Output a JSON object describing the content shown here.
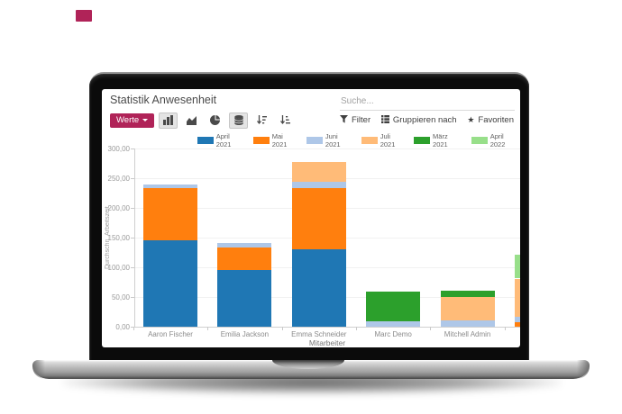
{
  "colors": {
    "accent": "#b02358"
  },
  "header": {
    "title": "Statistik Anwesenheit",
    "search_placeholder": "Suche...",
    "measures_button": "Werte",
    "filter": "Filter",
    "group_by": "Gruppieren nach",
    "favorites": "Favoriten",
    "toolbar_icons": [
      "bar-chart",
      "area-chart",
      "pie-chart",
      "stacked-database",
      "sort-descending",
      "sort-ascending"
    ]
  },
  "chart_data": {
    "type": "bar",
    "stacked": true,
    "title": "Statistik Anwesenheit",
    "xlabel": "Mitarbeiter",
    "ylabel": "Durchschn. Arbeitszeit",
    "ylim": [
      0,
      300
    ],
    "yticks": [
      "300,00",
      "250,00",
      "200,00",
      "150,00",
      "100,00",
      "50,00",
      "0,00"
    ],
    "grid": true,
    "legend_position": "top",
    "categories": [
      "Aaron Fischer",
      "Emilia Jackson",
      "Emma Schneider",
      "Marc Demo",
      "Mitchell Admin",
      ""
    ],
    "series": [
      {
        "name": "April 2021",
        "color": "#1f77b4",
        "values": [
          145,
          95,
          130,
          0,
          0,
          0
        ]
      },
      {
        "name": "Mai 2021",
        "color": "#ff7f0e",
        "values": [
          88,
          38,
          103,
          0,
          0,
          8
        ]
      },
      {
        "name": "Juni 2021",
        "color": "#aec7e8",
        "values": [
          7,
          8,
          11,
          9,
          11,
          8
        ]
      },
      {
        "name": "Juli 2021",
        "color": "#ffbb78",
        "values": [
          0,
          0,
          33,
          0,
          39,
          65
        ]
      },
      {
        "name": "März 2021",
        "color": "#2ca02c",
        "values": [
          0,
          0,
          0,
          50,
          11,
          0
        ]
      },
      {
        "name": "April 2022",
        "color": "#98df8a",
        "values": [
          0,
          0,
          0,
          0,
          0,
          40
        ]
      }
    ],
    "totals": [
      240,
      141,
      277,
      59,
      61,
      121
    ]
  }
}
